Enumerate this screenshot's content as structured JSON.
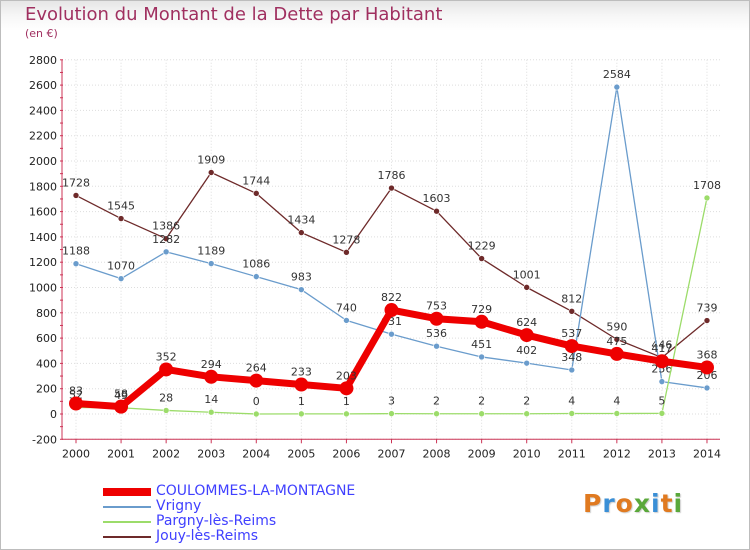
{
  "chart_data": {
    "type": "line",
    "title": "Evolution du Montant de la Dette par Habitant",
    "subtitle": "(en €)",
    "xlabel": "",
    "ylabel": "",
    "categories": [
      "2000",
      "2001",
      "2002",
      "2003",
      "2004",
      "2005",
      "2006",
      "2007",
      "2008",
      "2009",
      "2010",
      "2011",
      "2012",
      "2013",
      "2014"
    ],
    "ylim": [
      -200,
      2800
    ],
    "yticks": [
      -200,
      0,
      200,
      400,
      600,
      800,
      1000,
      1200,
      1400,
      1600,
      1800,
      2000,
      2200,
      2400,
      2600,
      2800
    ],
    "grid": true,
    "legend_position": "bottom-left",
    "series": [
      {
        "name": "Jouy-lès-Reims",
        "color": "#6e2a2a",
        "values": [
          1728,
          1545,
          1386,
          1909,
          1744,
          1434,
          1278,
          1786,
          1603,
          1229,
          1001,
          812,
          590,
          446,
          739
        ]
      },
      {
        "name": "Vrigny",
        "color": "#6a9ccc",
        "values": [
          1188,
          1070,
          1282,
          1189,
          1086,
          983,
          740,
          631,
          536,
          451,
          402,
          348,
          2584,
          256,
          206
        ]
      },
      {
        "name": "Pargny-lès-Reims",
        "color": "#9cdc6a",
        "values": [
          52,
          49,
          28,
          14,
          0,
          1,
          1,
          3,
          2,
          2,
          2,
          4,
          4,
          5,
          1708
        ]
      },
      {
        "name": "COULOMMES-LA-MONTAGNE",
        "color": "#ee0000",
        "values": [
          83,
          58,
          352,
          294,
          264,
          233,
          203,
          822,
          753,
          729,
          624,
          537,
          475,
          417,
          368
        ]
      }
    ]
  },
  "logo": {
    "text": "Proxiti",
    "colors": [
      "#e07a20",
      "#3a8fd6",
      "#e07a20",
      "#5aa83a",
      "#3a8fd6",
      "#e07a20",
      "#5aa83a"
    ]
  }
}
